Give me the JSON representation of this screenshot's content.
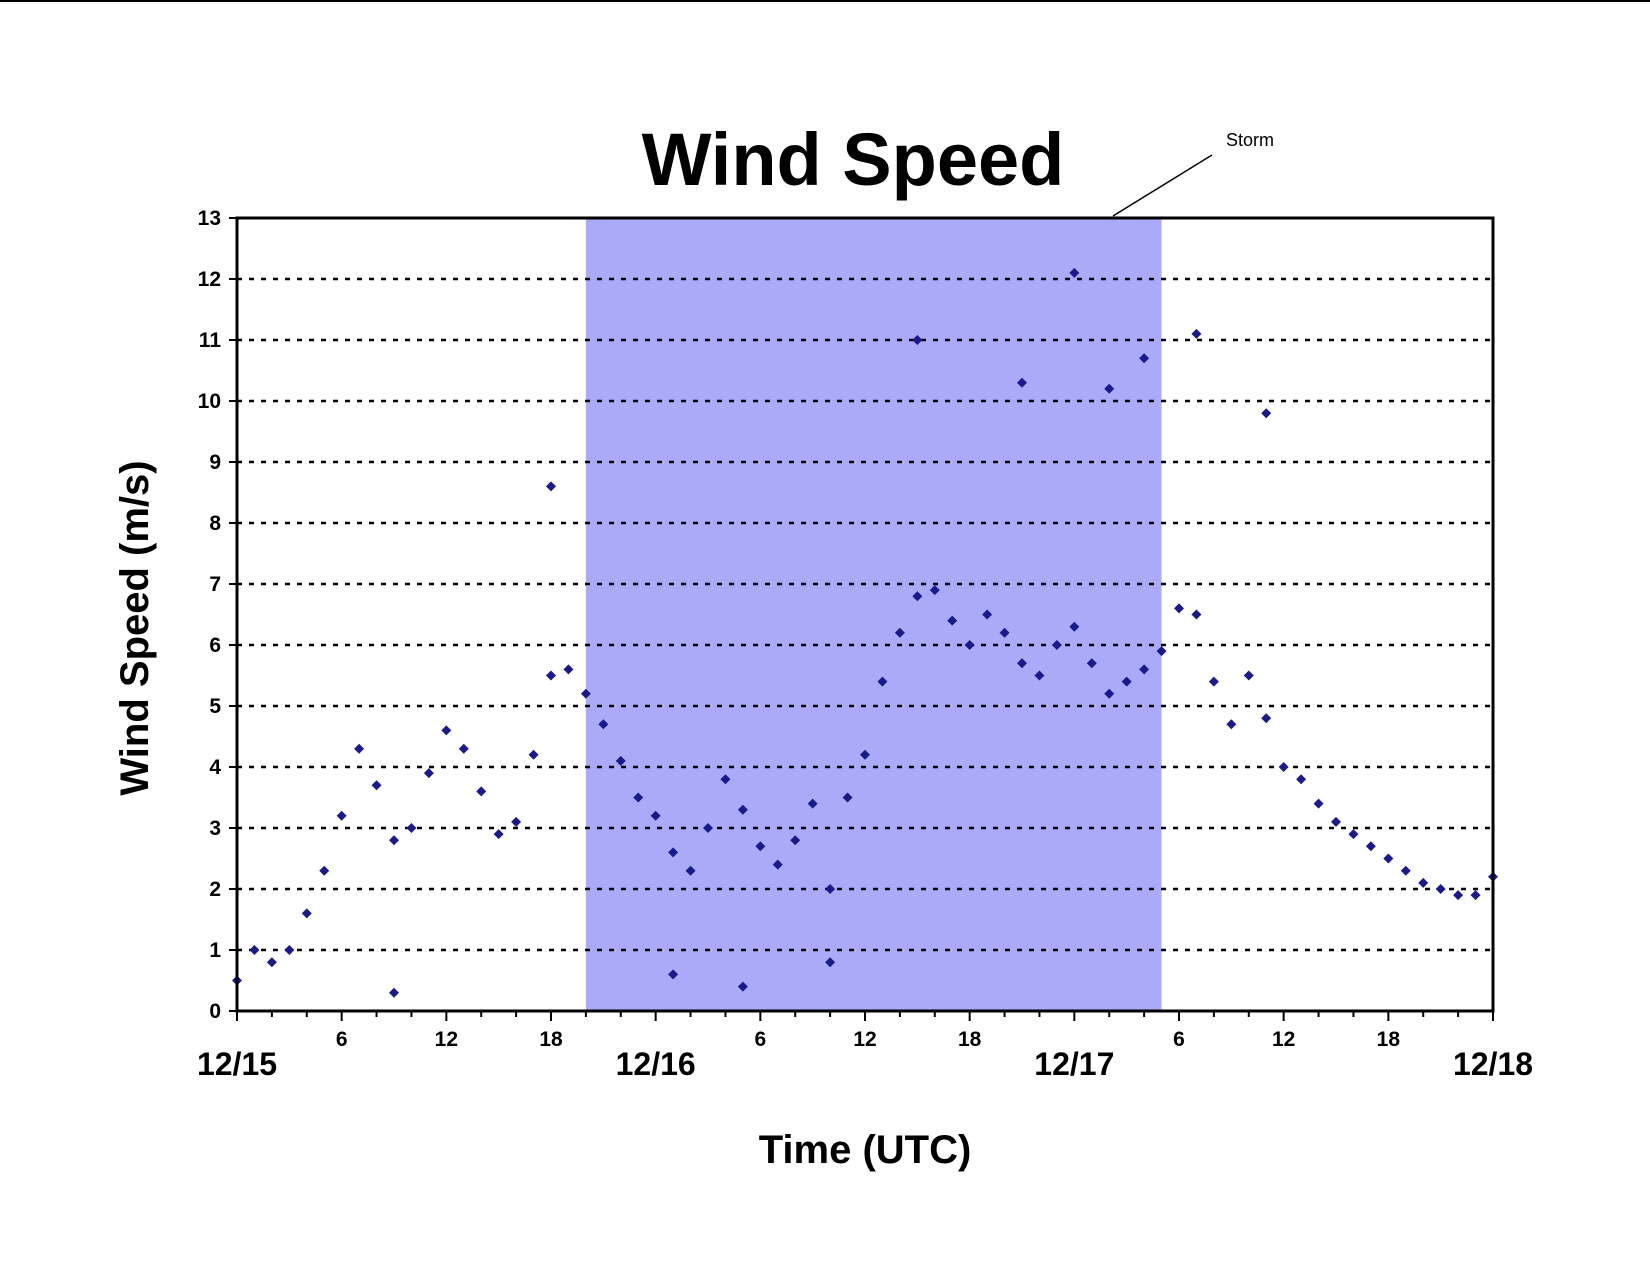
{
  "chart_data": {
    "type": "scatter",
    "title": "Wind Speed",
    "xlabel": "Time (UTC)",
    "ylabel": "Wind Speed (m/s)",
    "ylim": [
      0,
      13
    ],
    "xlim": [
      "12/15 00:00",
      "12/18 00:00"
    ],
    "yticks": [
      0,
      1,
      2,
      3,
      4,
      5,
      6,
      7,
      8,
      9,
      10,
      11,
      12,
      13
    ],
    "hour_ticks": [
      {
        "t": "12/15 06:00",
        "label": "6"
      },
      {
        "t": "12/15 12:00",
        "label": "12"
      },
      {
        "t": "12/15 18:00",
        "label": "18"
      },
      {
        "t": "12/16 06:00",
        "label": "6"
      },
      {
        "t": "12/16 12:00",
        "label": "12"
      },
      {
        "t": "12/16 18:00",
        "label": "18"
      },
      {
        "t": "12/17 06:00",
        "label": "6"
      },
      {
        "t": "12/17 12:00",
        "label": "12"
      },
      {
        "t": "12/17 18:00",
        "label": "18"
      }
    ],
    "date_ticks": [
      {
        "t": "12/15 00:00",
        "label": "12/15"
      },
      {
        "t": "12/16 00:00",
        "label": "12/16"
      },
      {
        "t": "12/17 00:00",
        "label": "12/17"
      },
      {
        "t": "12/18 00:00",
        "label": "12/18"
      }
    ],
    "grid": {
      "y": true,
      "style": "dotted"
    },
    "marker": {
      "shape": "diamond",
      "color": "#1a1a8c"
    },
    "shaded_region": {
      "label": "Storm",
      "start": "12/15 20:00",
      "end": "12/17 05:00",
      "color": "#aaaaf8"
    },
    "annotations": [
      {
        "text": "Storm"
      }
    ],
    "series": [
      {
        "marker_color": "#1a1a8c",
        "points": [
          [
            "12/15 00:00",
            0.5
          ],
          [
            "12/15 01:00",
            1.0
          ],
          [
            "12/15 02:00",
            0.8
          ],
          [
            "12/15 03:00",
            1.0
          ],
          [
            "12/15 04:00",
            1.6
          ],
          [
            "12/15 05:00",
            2.3
          ],
          [
            "12/15 06:00",
            3.2
          ],
          [
            "12/15 07:00",
            4.3
          ],
          [
            "12/15 08:00",
            3.7
          ],
          [
            "12/15 09:00",
            2.8
          ],
          [
            "12/15 10:00",
            3.0
          ],
          [
            "12/15 11:00",
            3.9
          ],
          [
            "12/15 12:00",
            4.6
          ],
          [
            "12/15 13:00",
            4.3
          ],
          [
            "12/15 14:00",
            3.6
          ],
          [
            "12/15 15:00",
            2.9
          ],
          [
            "12/15 16:00",
            3.1
          ],
          [
            "12/15 17:00",
            4.2
          ],
          [
            "12/15 18:00",
            5.5
          ],
          [
            "12/15 19:00",
            5.6
          ],
          [
            "12/15 20:00",
            5.2
          ],
          [
            "12/15 21:00",
            4.7
          ],
          [
            "12/15 22:00",
            4.1
          ],
          [
            "12/15 23:00",
            3.5
          ],
          [
            "12/16 00:00",
            3.2
          ],
          [
            "12/16 01:00",
            2.6
          ],
          [
            "12/16 02:00",
            2.3
          ],
          [
            "12/16 03:00",
            3.0
          ],
          [
            "12/16 04:00",
            3.8
          ],
          [
            "12/16 05:00",
            3.3
          ],
          [
            "12/16 06:00",
            2.7
          ],
          [
            "12/16 07:00",
            2.4
          ],
          [
            "12/16 08:00",
            2.8
          ],
          [
            "12/16 09:00",
            3.4
          ],
          [
            "12/16 10:00",
            2.0
          ],
          [
            "12/16 11:00",
            3.5
          ],
          [
            "12/16 12:00",
            4.2
          ],
          [
            "12/16 13:00",
            5.4
          ],
          [
            "12/16 14:00",
            6.2
          ],
          [
            "12/16 15:00",
            6.8
          ],
          [
            "12/16 16:00",
            6.9
          ],
          [
            "12/16 17:00",
            6.4
          ],
          [
            "12/16 18:00",
            6.0
          ],
          [
            "12/16 19:00",
            6.5
          ],
          [
            "12/16 20:00",
            6.2
          ],
          [
            "12/16 21:00",
            5.7
          ],
          [
            "12/16 22:00",
            5.5
          ],
          [
            "12/16 23:00",
            6.0
          ],
          [
            "12/17 00:00",
            6.3
          ],
          [
            "12/17 01:00",
            5.7
          ],
          [
            "12/17 02:00",
            5.2
          ],
          [
            "12/17 03:00",
            5.4
          ],
          [
            "12/17 04:00",
            5.6
          ],
          [
            "12/17 05:00",
            5.9
          ],
          [
            "12/17 06:00",
            6.6
          ],
          [
            "12/17 07:00",
            6.5
          ],
          [
            "12/17 08:00",
            5.4
          ],
          [
            "12/17 09:00",
            4.7
          ],
          [
            "12/17 10:00",
            5.5
          ],
          [
            "12/17 11:00",
            4.8
          ],
          [
            "12/17 12:00",
            4.0
          ],
          [
            "12/17 13:00",
            3.8
          ],
          [
            "12/17 14:00",
            3.4
          ],
          [
            "12/17 15:00",
            3.1
          ],
          [
            "12/17 16:00",
            2.9
          ],
          [
            "12/17 17:00",
            2.7
          ],
          [
            "12/17 18:00",
            2.5
          ],
          [
            "12/17 19:00",
            2.3
          ],
          [
            "12/17 20:00",
            2.1
          ],
          [
            "12/17 21:00",
            2.0
          ],
          [
            "12/17 22:00",
            1.9
          ],
          [
            "12/17 23:00",
            1.9
          ],
          [
            "12/18 00:00",
            2.2
          ],
          [
            "12/15 18:00",
            8.6
          ],
          [
            "12/16 15:00",
            11.0
          ],
          [
            "12/16 21:00",
            10.3
          ],
          [
            "12/17 00:00",
            12.1
          ],
          [
            "12/17 02:00",
            10.2
          ],
          [
            "12/17 04:00",
            10.7
          ],
          [
            "12/17 07:00",
            11.1
          ],
          [
            "12/17 11:00",
            9.8
          ],
          [
            "12/16 05:00",
            0.4
          ],
          [
            "12/15 09:00",
            0.3
          ],
          [
            "12/16 01:00",
            0.6
          ],
          [
            "12/16 10:00",
            0.8
          ]
        ]
      }
    ]
  }
}
